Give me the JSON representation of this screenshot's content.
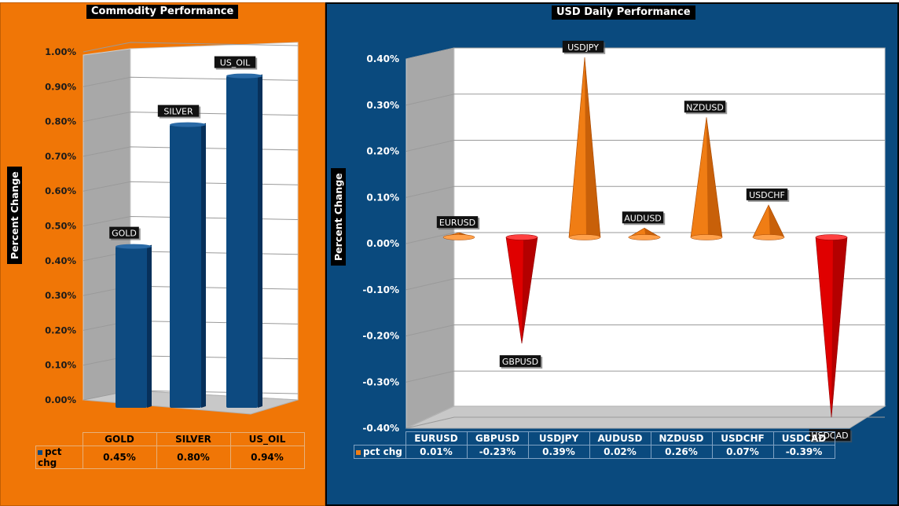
{
  "left_chart": {
    "title": "Commodity Performance",
    "ylabel": "Percent Change",
    "legend_label": "pct chg",
    "ticks": [
      "0.00%",
      "0.10%",
      "0.20%",
      "0.30%",
      "0.40%",
      "0.50%",
      "0.60%",
      "0.70%",
      "0.80%",
      "0.90%",
      "1.00%"
    ],
    "table_values": [
      "0.45%",
      "0.80%",
      "0.94%"
    ]
  },
  "right_chart": {
    "title": "USD Daily Performance",
    "ylabel": "Percent Change",
    "legend_label": "pct chg",
    "ticks": [
      "-0.40%",
      "-0.30%",
      "-0.20%",
      "-0.10%",
      "0.00%",
      "0.10%",
      "0.20%",
      "0.30%",
      "0.40%"
    ],
    "table_values": [
      "0.01%",
      "-0.23%",
      "0.39%",
      "0.02%",
      "0.26%",
      "0.07%",
      "-0.39%"
    ]
  },
  "chart_data": [
    {
      "type": "bar",
      "title": "Commodity Performance",
      "ylabel": "Percent Change",
      "xlabel": "",
      "categories": [
        "GOLD",
        "SILVER",
        "US_OIL"
      ],
      "series": [
        {
          "name": "pct chg",
          "values": [
            0.45,
            0.8,
            0.94
          ]
        }
      ],
      "ylim": [
        0,
        1.0
      ],
      "grid": true,
      "legend": "table-left",
      "color": "#0d4a80"
    },
    {
      "type": "bar",
      "title": "USD Daily Performance",
      "ylabel": "Percent Change",
      "xlabel": "",
      "categories": [
        "EURUSD",
        "GBPUSD",
        "USDJPY",
        "AUDUSD",
        "NZDUSD",
        "USDCHF",
        "USDCAD"
      ],
      "series": [
        {
          "name": "pct chg",
          "values": [
            0.01,
            -0.23,
            0.39,
            0.02,
            0.26,
            0.07,
            -0.39
          ]
        }
      ],
      "ylim": [
        -0.4,
        0.4
      ],
      "grid": true,
      "legend": "table-left",
      "positive_color": "#f07d14",
      "negative_color": "#e00000"
    }
  ]
}
